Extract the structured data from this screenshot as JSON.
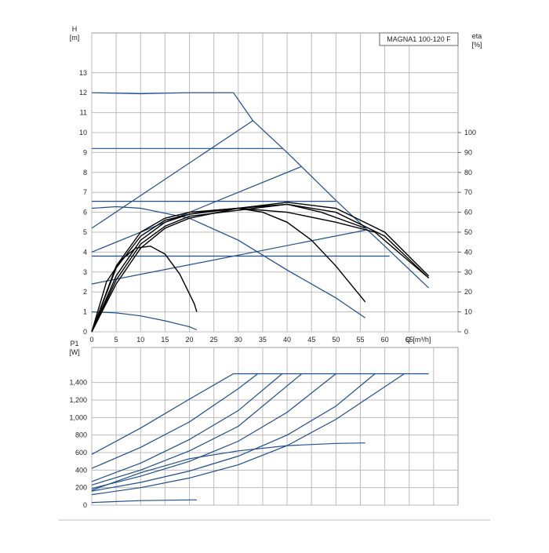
{
  "chart_data": [
    {
      "type": "line",
      "title": "MAGNA1 100-120 F",
      "y_label_lines": [
        "H",
        "[m]"
      ],
      "y2_label_lines": [
        "eta",
        "[%]"
      ],
      "x_label": "Q [m³/h]",
      "x_label_at": 70,
      "xlim": [
        0,
        75
      ],
      "xticks": [
        0,
        5,
        10,
        15,
        20,
        25,
        30,
        35,
        40,
        45,
        50,
        55,
        60,
        65
      ],
      "show_xtick_labels": true,
      "ylim": [
        0,
        15
      ],
      "yticks": [
        0,
        1,
        2,
        3,
        4,
        5,
        6,
        7,
        8,
        9,
        10,
        11,
        12,
        13
      ],
      "y2lim": [
        0,
        150
      ],
      "y2ticks": [
        0,
        10,
        20,
        30,
        40,
        50,
        60,
        70,
        80,
        90,
        100
      ],
      "grid": true,
      "series": [
        {
          "color": "#1f4e8c",
          "x": [
            0,
            10,
            20,
            29,
            33,
            40,
            50,
            60,
            69
          ],
          "values": [
            12,
            11.95,
            12,
            12,
            10.6,
            9,
            6.6,
            4.3,
            2.2
          ]
        },
        {
          "color": "#1f4e8c",
          "x": [
            0,
            39
          ],
          "values": [
            9.2,
            9.2
          ]
        },
        {
          "color": "#1f4e8c",
          "x": [
            0,
            50
          ],
          "values": [
            6.55,
            6.55
          ]
        },
        {
          "color": "#1f4e8c",
          "x": [
            0,
            61
          ],
          "values": [
            3.8,
            3.8
          ]
        },
        {
          "color": "#1f4e8c",
          "x": [
            0,
            33
          ],
          "values": [
            5.2,
            10.6
          ]
        },
        {
          "color": "#1f4e8c",
          "x": [
            0,
            43
          ],
          "values": [
            4,
            8.3
          ]
        },
        {
          "color": "#1f4e8c",
          "x": [
            0,
            56
          ],
          "values": [
            2.4,
            5.1
          ]
        },
        {
          "color": "#1f4e8c",
          "x": [
            0,
            5,
            10,
            20,
            30,
            40,
            50,
            56
          ],
          "values": [
            6.2,
            6.28,
            6.2,
            5.7,
            4.6,
            3.1,
            1.7,
            0.7
          ]
        },
        {
          "color": "#1f4e8c",
          "x": [
            0,
            5,
            10,
            15,
            20,
            21.5
          ],
          "values": [
            1,
            0.95,
            0.8,
            0.55,
            0.25,
            0.1
          ]
        },
        {
          "color": "#000000",
          "axis": "y2",
          "x": [
            0,
            3,
            6,
            9,
            12,
            15,
            18,
            21,
            21.5
          ],
          "values": [
            0,
            25,
            36,
            42,
            43,
            39,
            29,
            14,
            10
          ]
        },
        {
          "color": "#000000",
          "axis": "y2",
          "x": [
            0,
            5,
            10,
            15,
            20,
            25,
            30,
            35,
            40,
            45,
            50,
            56
          ],
          "values": [
            0,
            32,
            48,
            56,
            59,
            61,
            62,
            60,
            55,
            46,
            33,
            15
          ]
        },
        {
          "color": "#000000",
          "axis": "y2",
          "x": [
            0,
            5,
            10,
            15,
            20,
            30,
            40,
            50,
            60,
            69
          ],
          "values": [
            0,
            33,
            50,
            57,
            60,
            62,
            64,
            60,
            48,
            27
          ]
        },
        {
          "color": "#000000",
          "axis": "y2",
          "x": [
            0,
            5,
            10,
            15,
            20,
            30,
            40,
            50,
            58,
            69
          ],
          "values": [
            0,
            28,
            46,
            55,
            59,
            62,
            60,
            55,
            50,
            27
          ]
        },
        {
          "color": "#000000",
          "axis": "y2",
          "x": [
            0,
            5,
            10,
            15,
            20,
            30,
            40,
            47,
            56
          ],
          "values": [
            0,
            26,
            44,
            53,
            58,
            61,
            64,
            60,
            52
          ]
        },
        {
          "color": "#000000",
          "axis": "y2",
          "x": [
            0,
            5,
            10,
            15,
            20,
            30,
            40,
            50,
            60,
            69
          ],
          "values": [
            0,
            24,
            42,
            52,
            57,
            62,
            65,
            62,
            50,
            28
          ]
        }
      ]
    },
    {
      "type": "line",
      "y_label_lines": [
        "P1",
        "[W]"
      ],
      "xlim": [
        0,
        75
      ],
      "xticks": [
        0,
        5,
        10,
        15,
        20,
        25,
        30,
        35,
        40,
        45,
        50,
        55,
        60,
        65,
        70
      ],
      "show_xtick_labels": false,
      "ylim": [
        0,
        1800
      ],
      "yticks": [
        0,
        200,
        400,
        600,
        800,
        {
          "value": 1000,
          "label": "1,000"
        },
        {
          "value": 1200,
          "label": "1,200"
        },
        {
          "value": 1400,
          "label": "1,400"
        }
      ],
      "grid": true,
      "series": [
        {
          "color": "#1f4e8c",
          "x": [
            0,
            10,
            20,
            29,
            69
          ],
          "values": [
            580,
            880,
            1210,
            1500,
            1500
          ]
        },
        {
          "color": "#1f4e8c",
          "x": [
            0,
            10,
            20,
            30,
            34
          ],
          "values": [
            420,
            660,
            950,
            1330,
            1500
          ]
        },
        {
          "color": "#1f4e8c",
          "x": [
            0,
            10,
            20,
            30,
            39
          ],
          "values": [
            270,
            480,
            750,
            1080,
            1500
          ]
        },
        {
          "color": "#1f4e8c",
          "x": [
            0,
            10,
            20,
            30,
            43
          ],
          "values": [
            230,
            400,
            620,
            900,
            1500
          ]
        },
        {
          "color": "#1f4e8c",
          "x": [
            0,
            10,
            20,
            30,
            40,
            50
          ],
          "values": [
            190,
            330,
            500,
            730,
            1060,
            1500
          ]
        },
        {
          "color": "#1f4e8c",
          "x": [
            0,
            10,
            20,
            30,
            40,
            50,
            58
          ],
          "values": [
            160,
            260,
            390,
            560,
            800,
            1130,
            1500
          ]
        },
        {
          "color": "#1f4e8c",
          "x": [
            0,
            10,
            20,
            30,
            40,
            50,
            64
          ],
          "values": [
            120,
            200,
            310,
            460,
            680,
            980,
            1500
          ]
        },
        {
          "color": "#1f4e8c",
          "x": [
            0,
            10,
            20,
            30,
            40,
            50,
            56
          ],
          "values": [
            170,
            370,
            530,
            620,
            680,
            705,
            710
          ]
        },
        {
          "color": "#1f4e8c",
          "x": [
            0,
            10,
            20,
            21.5
          ],
          "values": [
            30,
            52,
            60,
            60
          ]
        }
      ]
    }
  ]
}
